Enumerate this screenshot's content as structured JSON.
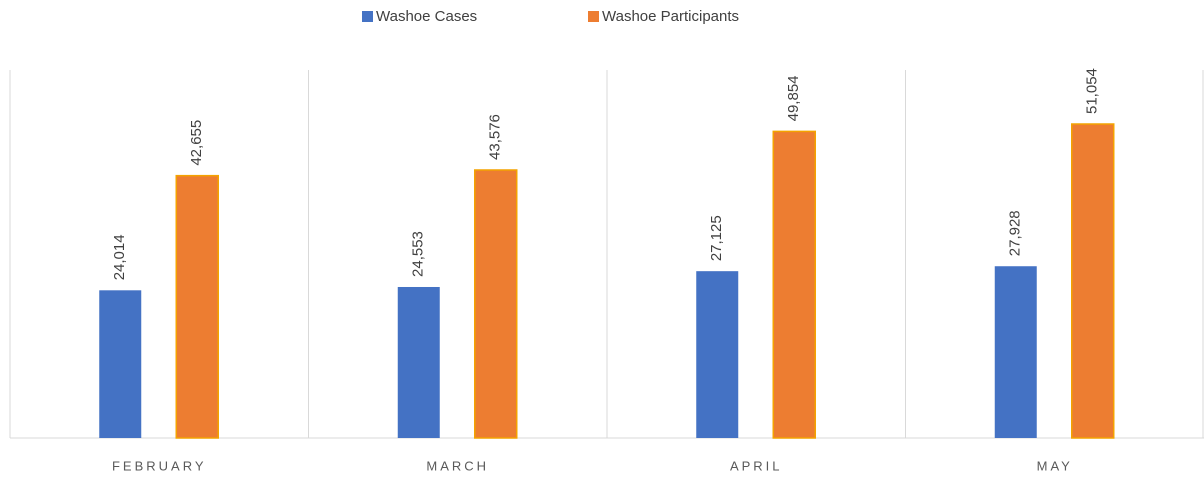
{
  "chart_data": {
    "type": "bar",
    "categories": [
      "FEBRUARY",
      "MARCH",
      "APRIL",
      "MAY"
    ],
    "series": [
      {
        "name": "Washoe Cases",
        "color": "#4472c4",
        "values": [
          24014,
          24553,
          27125,
          27928
        ],
        "value_labels": [
          "24,014",
          "24,553",
          "27,125",
          "27,928"
        ]
      },
      {
        "name": "Washoe Participants",
        "color": "#ed7d31",
        "values": [
          42655,
          43576,
          49854,
          51054
        ],
        "value_labels": [
          "42,655",
          "43,576",
          "49,854",
          "51,054"
        ]
      }
    ],
    "legend": "top"
  }
}
